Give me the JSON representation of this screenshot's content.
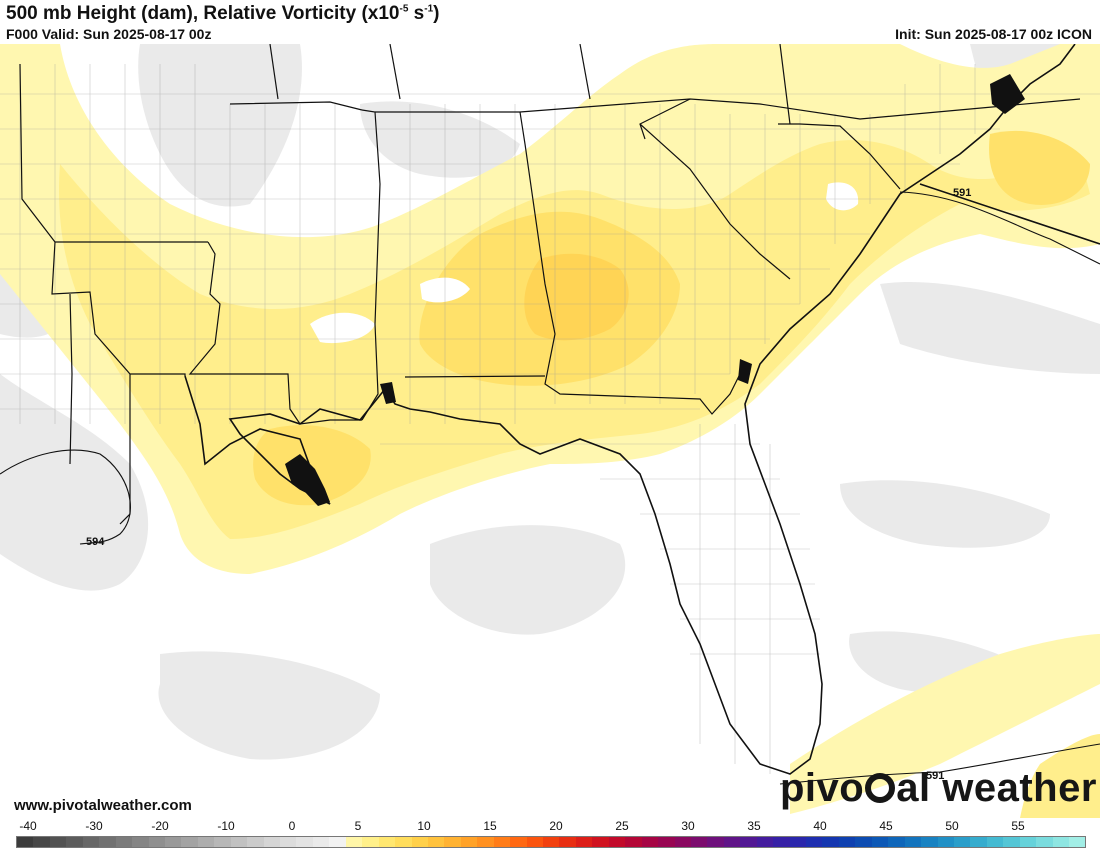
{
  "header": {
    "title_main": "500 mb Height (dam), Relative Vorticity (x10",
    "title_exp": "-5",
    "title_mid": " s",
    "title_exp2": "-1",
    "title_end": ")",
    "valid": "F000 Valid: Sun 2025-08-17 00z",
    "init": "Init: Sun 2025-08-17 00z ICON"
  },
  "map": {
    "contour_labels": [
      "591",
      "594",
      "591"
    ]
  },
  "footer": {
    "url": "www.pivotalweather.com",
    "brand_left": "pivo",
    "brand_right": "al weather"
  },
  "colorbar": {
    "ticks": [
      "-40",
      "-30",
      "-20",
      "-10",
      "0",
      "5",
      "10",
      "15",
      "20",
      "25",
      "30",
      "35",
      "40",
      "45",
      "50",
      "55"
    ],
    "colors": [
      "#3c3c3c",
      "#474747",
      "#525252",
      "#5c5c5c",
      "#676767",
      "#717171",
      "#7b7b7b",
      "#858585",
      "#8f8f8f",
      "#999999",
      "#a3a3a3",
      "#adadad",
      "#b7b7b7",
      "#c1c1c1",
      "#cbcbcb",
      "#d5d5d5",
      "#dcdcdc",
      "#e3e3e3",
      "#eaeaea",
      "#f2f2f2",
      "#fff6a8",
      "#fff08a",
      "#ffe770",
      "#ffdd5c",
      "#ffd04a",
      "#ffc23d",
      "#ffb232",
      "#ffa228",
      "#ff9020",
      "#ff7c18",
      "#ff6812",
      "#fb540e",
      "#f2400e",
      "#e82e12",
      "#dd1e18",
      "#d0121f",
      "#c20a2a",
      "#b40636",
      "#a60444",
      "#980552",
      "#8a0860",
      "#7c0c6e",
      "#6e107c",
      "#601488",
      "#521894",
      "#441c9e",
      "#3620a6",
      "#2a26ac",
      "#1e2eb0",
      "#1436b0",
      "#0e40b0",
      "#0c4cb2",
      "#0c58b6",
      "#0e66ba",
      "#1274be",
      "#1882c2",
      "#2090c6",
      "#2a9eca",
      "#36acce",
      "#44bad2",
      "#54c6d6",
      "#66d2da",
      "#7adcde",
      "#8ee6e2",
      "#a2eee6"
    ]
  }
}
